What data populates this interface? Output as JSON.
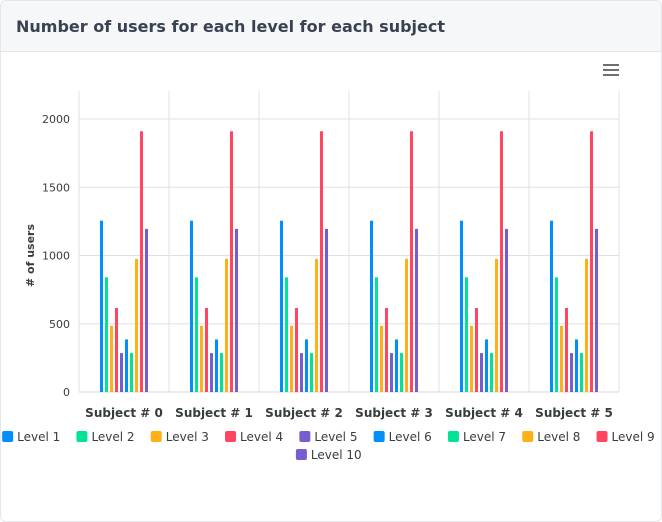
{
  "card": {
    "title": "Number of users for each level for each subject",
    "menu_icon": "hamburger-menu-icon"
  },
  "chart_data": {
    "type": "bar",
    "ylabel": "# of users",
    "xlabel": "",
    "ylim": [
      0,
      2000
    ],
    "yticks": [
      "0",
      "500",
      "1000",
      "1500",
      "2000"
    ],
    "grid": true,
    "legend_position": "bottom",
    "categories": [
      "Subject # 0",
      "Subject # 1",
      "Subject # 2",
      "Subject # 3",
      "Subject # 4",
      "Subject # 5"
    ],
    "series": [
      {
        "name": "Level 1",
        "color": "#008ffb",
        "values": [
          1255,
          1255,
          1255,
          1255,
          1255,
          1255
        ]
      },
      {
        "name": "Level 2",
        "color": "#00e396",
        "values": [
          840,
          840,
          840,
          840,
          840,
          840
        ]
      },
      {
        "name": "Level 3",
        "color": "#feb019",
        "values": [
          485,
          485,
          485,
          485,
          485,
          485
        ]
      },
      {
        "name": "Level 4",
        "color": "#ff4560",
        "values": [
          615,
          615,
          615,
          615,
          615,
          615
        ]
      },
      {
        "name": "Level 5",
        "color": "#775dd0",
        "values": [
          285,
          285,
          285,
          285,
          285,
          285
        ]
      },
      {
        "name": "Level 6",
        "color": "#008ffb",
        "values": [
          385,
          385,
          385,
          385,
          385,
          385
        ]
      },
      {
        "name": "Level 7",
        "color": "#00e396",
        "values": [
          285,
          285,
          285,
          285,
          285,
          285
        ]
      },
      {
        "name": "Level 8",
        "color": "#feb019",
        "values": [
          975,
          975,
          975,
          975,
          975,
          975
        ]
      },
      {
        "name": "Level 9",
        "color": "#ff4560",
        "values": [
          1910,
          1910,
          1910,
          1910,
          1910,
          1910
        ]
      },
      {
        "name": "Level 10",
        "color": "#775dd0",
        "values": [
          1195,
          1195,
          1195,
          1195,
          1195,
          1195
        ]
      }
    ]
  }
}
